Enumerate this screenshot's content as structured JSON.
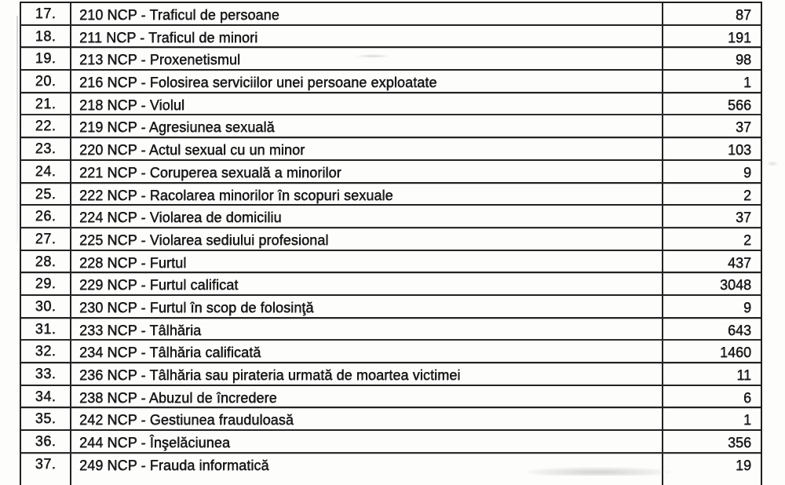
{
  "page": {
    "paper_color": "#fdfdfc",
    "ink_color": "#1b1b1b"
  },
  "table": {
    "rows": [
      {
        "num": "17.",
        "label": "210 NCP - Traficul de persoane",
        "value": "87"
      },
      {
        "num": "18.",
        "label": "211 NCP - Traficul de minori",
        "value": "191"
      },
      {
        "num": "19.",
        "label": "213 NCP - Proxenetismul",
        "value": "98"
      },
      {
        "num": "20.",
        "label": "216 NCP - Folosirea serviciilor unei persoane exploatate",
        "value": "1"
      },
      {
        "num": "21.",
        "label": "218 NCP - Violul",
        "value": "566"
      },
      {
        "num": "22.",
        "label": "219 NCP - Agresiunea sexuală",
        "value": "37"
      },
      {
        "num": "23.",
        "label": "220 NCP - Actul sexual cu un minor",
        "value": "103"
      },
      {
        "num": "24.",
        "label": "221 NCP - Coruperea sexuală a minorilor",
        "value": "9"
      },
      {
        "num": "25.",
        "label": "222 NCP - Racolarea minorilor în scopuri sexuale",
        "value": "2"
      },
      {
        "num": "26.",
        "label": "224 NCP - Violarea de domiciliu",
        "value": "37"
      },
      {
        "num": "27.",
        "label": "225 NCP - Violarea sediului profesional",
        "value": "2"
      },
      {
        "num": "28.",
        "label": "228 NCP - Furtul",
        "value": "437"
      },
      {
        "num": "29.",
        "label": "229 NCP - Furtul calificat",
        "value": "3048"
      },
      {
        "num": "30.",
        "label": "230 NCP - Furtul în scop de folosinţă",
        "value": "9"
      },
      {
        "num": "31.",
        "label": "233 NCP - Tâlhăria",
        "value": "643"
      },
      {
        "num": "32.",
        "label": "234 NCP - Tâlhăria calificată",
        "value": "1460"
      },
      {
        "num": "33.",
        "label": "236 NCP - Tâlhăria sau pirateria urmată de moartea victimei",
        "value": "11"
      },
      {
        "num": "34.",
        "label": "238 NCP - Abuzul de încredere",
        "value": "6"
      },
      {
        "num": "35.",
        "label": "242 NCP - Gestiunea frauduloasă",
        "value": "1"
      },
      {
        "num": "36.",
        "label": "244 NCP - Înşelăciunea",
        "value": "356"
      },
      {
        "num": "37.",
        "label": "249 NCP - Frauda informatică",
        "value": "19"
      }
    ]
  }
}
